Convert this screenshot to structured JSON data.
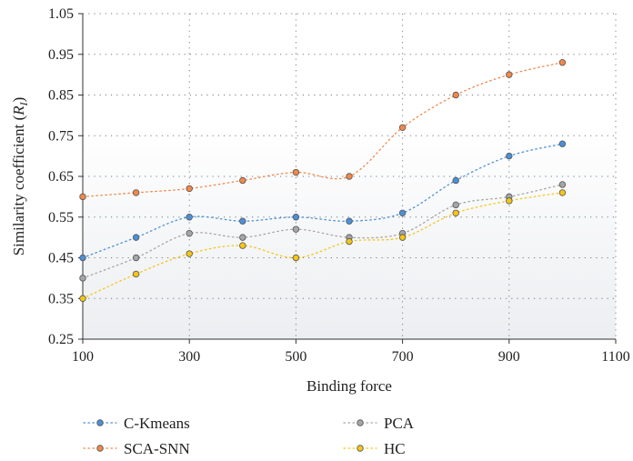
{
  "chart_data": {
    "type": "line",
    "xlabel": "Binding force",
    "ylabel_main": "Similarity coefficient (",
    "ylabel_italic": "R",
    "ylabel_sub": "I",
    "ylabel_close": ")",
    "xlim": [
      100,
      1100
    ],
    "ylim": [
      0.25,
      1.05
    ],
    "x_ticks": [
      100,
      300,
      500,
      700,
      900,
      1100
    ],
    "x_tick_labels": [
      "100",
      "300",
      "500",
      "700",
      "900",
      "1100"
    ],
    "y_ticks": [
      0.25,
      0.35,
      0.45,
      0.55,
      0.65,
      0.75,
      0.85,
      0.95,
      1.05
    ],
    "y_tick_labels": [
      "0.25",
      "0.35",
      "0.45",
      "0.55",
      "0.65",
      "0.75",
      "0.85",
      "0.95",
      "1.05"
    ],
    "grid": "dotted",
    "legend_position": "bottom",
    "x": [
      100,
      200,
      300,
      400,
      500,
      600,
      700,
      800,
      900,
      1000
    ],
    "series": [
      {
        "name": "C-Kmeans",
        "color": "#4a90d9",
        "values": [
          0.45,
          0.5,
          0.55,
          0.54,
          0.55,
          0.54,
          0.56,
          0.64,
          0.7,
          0.73
        ]
      },
      {
        "name": "SCA-SNN",
        "color": "#f0884a",
        "values": [
          0.6,
          0.61,
          0.62,
          0.64,
          0.66,
          0.65,
          0.77,
          0.85,
          0.9,
          0.93
        ]
      },
      {
        "name": "PCA",
        "color": "#a6a6a6",
        "values": [
          0.4,
          0.45,
          0.51,
          0.5,
          0.52,
          0.5,
          0.51,
          0.58,
          0.6,
          0.63
        ]
      },
      {
        "name": "HC",
        "color": "#f5c518",
        "values": [
          0.35,
          0.41,
          0.46,
          0.48,
          0.45,
          0.49,
          0.5,
          0.56,
          0.59,
          0.61
        ]
      }
    ]
  }
}
